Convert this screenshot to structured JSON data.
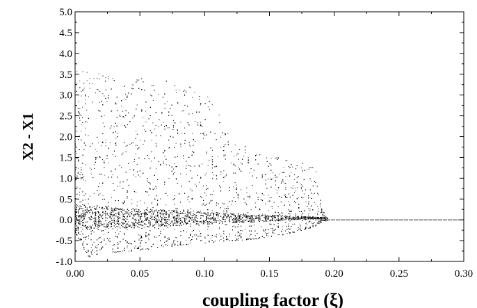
{
  "chart_data": {
    "type": "scatter",
    "title": "",
    "xlabel": "coupling factor (ξ)",
    "ylabel": "X2 - X1",
    "xlim": [
      0.0,
      0.3
    ],
    "ylim": [
      -1.0,
      5.0
    ],
    "x_ticks": [
      0.0,
      0.05,
      0.1,
      0.15,
      0.2,
      0.25,
      0.3
    ],
    "x_tick_labels": [
      "0.00",
      "0.05",
      "0.10",
      "0.15",
      "0.20",
      "0.25",
      "0.30"
    ],
    "y_ticks": [
      -1.0,
      -0.5,
      0.0,
      0.5,
      1.0,
      1.5,
      2.0,
      2.5,
      3.0,
      3.5,
      4.0,
      4.5,
      5.0
    ],
    "y_tick_labels": [
      "-1.0",
      "-0.5",
      "0.0",
      "0.5",
      "1.0",
      "1.5",
      "2.0",
      "2.5",
      "3.0",
      "3.5",
      "4.0",
      "4.5",
      "5.0"
    ],
    "grid": false,
    "legend": "none",
    "marker_color": "#000000",
    "series": [
      {
        "envelope_x": [
          0.0,
          0.005,
          0.01,
          0.02,
          0.04,
          0.06,
          0.08,
          0.1,
          0.12,
          0.14,
          0.16,
          0.175,
          0.185,
          0.19,
          0.195,
          0.3
        ],
        "envelope_upper": [
          3.8,
          3.6,
          3.6,
          3.5,
          3.4,
          3.4,
          3.3,
          3.2,
          2.0,
          1.6,
          1.5,
          1.4,
          1.3,
          0.3,
          0.05,
          0.0
        ],
        "envelope_lower": [
          -0.3,
          -0.6,
          -0.9,
          -0.8,
          -0.75,
          -0.7,
          -0.6,
          -0.55,
          -0.5,
          -0.45,
          -0.35,
          -0.25,
          -0.15,
          -0.05,
          0.0,
          0.0
        ]
      }
    ]
  }
}
